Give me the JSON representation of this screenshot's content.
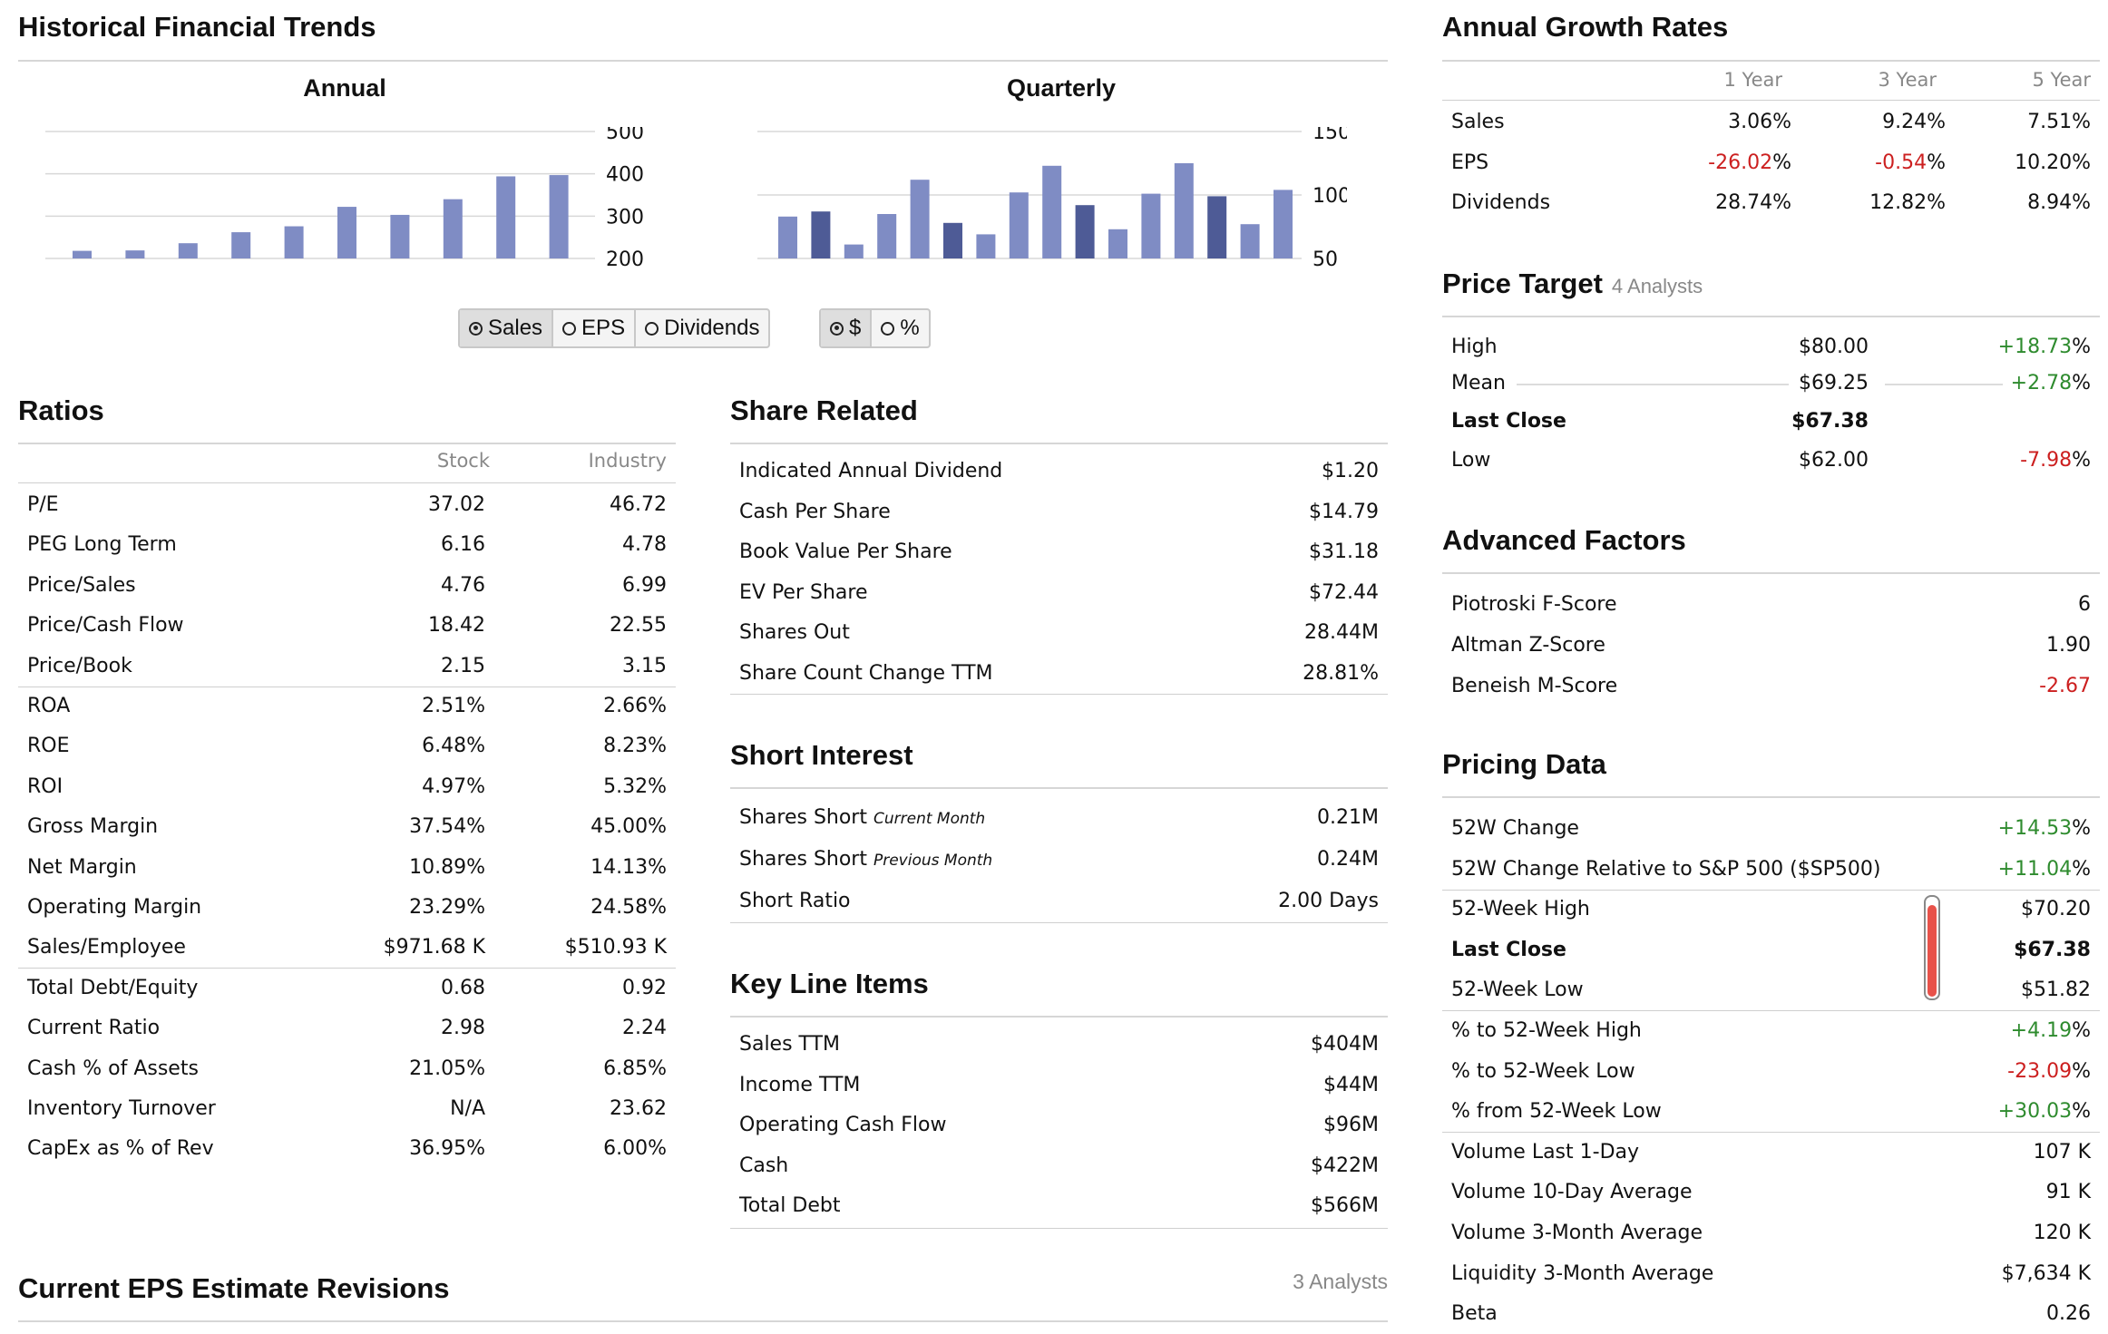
{
  "trends": {
    "title": "Historical Financial Trends",
    "annual_title": "Annual",
    "quarterly_title": "Quarterly",
    "metric_buttons": [
      "Sales",
      "EPS",
      "Dividends"
    ],
    "unit_buttons": [
      "$",
      "%"
    ],
    "selected_metric": "Sales",
    "selected_unit": "$"
  },
  "chart_data": [
    {
      "type": "bar",
      "title": "Annual",
      "values": [
        218,
        219,
        236,
        262,
        276,
        322,
        303,
        340,
        394,
        397
      ],
      "ylim": [
        200,
        500
      ],
      "yticks": [
        "500",
        "400",
        "300",
        "200"
      ],
      "ytick_values": [
        500,
        400,
        300,
        200
      ],
      "grid": true,
      "color": "#7f8cc4"
    },
    {
      "type": "bar",
      "title": "Quarterly",
      "values": [
        83,
        87,
        61,
        85,
        112,
        78,
        69,
        102,
        123,
        92,
        73,
        101,
        125,
        99,
        77,
        104
      ],
      "dark": [
        false,
        true,
        false,
        false,
        false,
        true,
        false,
        false,
        false,
        true,
        false,
        false,
        false,
        true,
        false,
        false
      ],
      "ylim": [
        50,
        150
      ],
      "yticks": [
        "150",
        "100",
        "50"
      ],
      "ytick_values": [
        150,
        100,
        50
      ],
      "grid": true,
      "color": "#7f8cc4",
      "dark_color": "#4e5b96"
    }
  ],
  "ratios": {
    "title": "Ratios",
    "col1": "Stock",
    "col2": "Industry",
    "rows": [
      [
        "P/E",
        "37.02",
        "46.72"
      ],
      [
        "PEG Long Term",
        "6.16",
        "4.78"
      ],
      [
        "Price/Sales",
        "4.76",
        "6.99"
      ],
      [
        "Price/Cash Flow",
        "18.42",
        "22.55"
      ],
      [
        "Price/Book",
        "2.15",
        "3.15"
      ],
      [
        "ROA",
        "2.51%",
        "2.66%"
      ],
      [
        "ROE",
        "6.48%",
        "8.23%"
      ],
      [
        "ROI",
        "4.97%",
        "5.32%"
      ],
      [
        "Gross Margin",
        "37.54%",
        "45.00%"
      ],
      [
        "Net Margin",
        "10.89%",
        "14.13%"
      ],
      [
        "Operating Margin",
        "23.29%",
        "24.58%"
      ],
      [
        "Sales/Employee",
        "$971.68 K",
        "$510.93 K"
      ],
      [
        "Total Debt/Equity",
        "0.68",
        "0.92"
      ],
      [
        "Current Ratio",
        "2.98",
        "2.24"
      ],
      [
        "Cash % of Assets",
        "21.05%",
        "6.85%"
      ],
      [
        "Inventory Turnover",
        "N/A",
        "23.62"
      ],
      [
        "CapEx as % of Rev",
        "36.95%",
        "6.00%"
      ]
    ]
  },
  "share_related": {
    "title": "Share Related",
    "rows": [
      [
        "Indicated Annual Dividend",
        "$1.20"
      ],
      [
        "Cash Per Share",
        "$14.79"
      ],
      [
        "Book Value Per Share",
        "$31.18"
      ],
      [
        "EV Per Share",
        "$72.44"
      ],
      [
        "Shares Out",
        "28.44M"
      ],
      [
        "Share Count Change TTM",
        "28.81%"
      ]
    ]
  },
  "short_interest": {
    "title": "Short Interest",
    "rows": [
      {
        "label": "Shares Short",
        "note": "Current Month",
        "value": "0.21M"
      },
      {
        "label": "Shares Short",
        "note": "Previous Month",
        "value": "0.24M"
      },
      {
        "label": "Short Ratio",
        "note": "",
        "value": "2.00 Days"
      }
    ]
  },
  "key_line_items": {
    "title": "Key Line Items",
    "rows": [
      [
        "Sales TTM",
        "$404M"
      ],
      [
        "Income TTM",
        "$44M"
      ],
      [
        "Operating Cash Flow",
        "$96M"
      ],
      [
        "Cash",
        "$422M"
      ],
      [
        "Total Debt",
        "$566M"
      ]
    ]
  },
  "eps_revisions": {
    "title": "Current EPS Estimate Revisions",
    "analysts": "3 Analysts"
  },
  "growth": {
    "title": "Annual Growth Rates",
    "cols": [
      "1 Year",
      "3 Year",
      "5 Year"
    ],
    "rows": [
      {
        "label": "Sales",
        "v": [
          "3.06%",
          "9.24%",
          "7.51%"
        ],
        "neg": [
          false,
          false,
          false
        ]
      },
      {
        "label": "EPS",
        "v": [
          "-26.02",
          "-0.54",
          "10.20%"
        ],
        "neg": [
          true,
          true,
          false
        ]
      },
      {
        "label": "Dividends",
        "v": [
          "28.74%",
          "12.82%",
          "8.94%"
        ],
        "neg": [
          false,
          false,
          false
        ]
      }
    ]
  },
  "price_target": {
    "title": "Price Target",
    "analysts": "4 Analysts",
    "rows": [
      {
        "label": "High",
        "price": "$80.00",
        "chg": "+18.73",
        "bold": false,
        "leader": false
      },
      {
        "label": "Mean",
        "price": "$69.25",
        "chg": "+2.78",
        "bold": false,
        "leader": true
      },
      {
        "label": "Last Close",
        "price": "$67.38",
        "chg": "",
        "bold": true,
        "leader": false
      },
      {
        "label": "Low",
        "price": "$62.00",
        "chg": "-7.98",
        "bold": false,
        "leader": false
      }
    ]
  },
  "advanced": {
    "title": "Advanced Factors",
    "rows": [
      {
        "label": "Piotroski F-Score",
        "value": "6",
        "neg": false
      },
      {
        "label": "Altman Z-Score",
        "value": "1.90",
        "neg": false
      },
      {
        "label": "Beneish M-Score",
        "value": "-2.67",
        "neg": true
      }
    ]
  },
  "pricing": {
    "title": "Pricing Data",
    "range_position": 0.9,
    "rows": [
      {
        "label": "52W Change",
        "value": "+14.53",
        "cls": "pos",
        "pct": true,
        "bold": false
      },
      {
        "label": "52W Change Relative to S&P 500 ($SP500)",
        "value": "+11.04",
        "cls": "pos",
        "pct": true,
        "bold": false
      },
      {
        "label": "52-Week High",
        "value": "$70.20",
        "cls": "",
        "pct": false,
        "bold": false
      },
      {
        "label": "Last Close",
        "value": "$67.38",
        "cls": "",
        "pct": false,
        "bold": true
      },
      {
        "label": "52-Week Low",
        "value": "$51.82",
        "cls": "",
        "pct": false,
        "bold": false
      },
      {
        "label": "% to 52-Week High",
        "value": "+4.19",
        "cls": "pos",
        "pct": true,
        "bold": false
      },
      {
        "label": "% to 52-Week Low",
        "value": "-23.09",
        "cls": "neg",
        "pct": true,
        "bold": false
      },
      {
        "label": "% from 52-Week Low",
        "value": "+30.03",
        "cls": "pos",
        "pct": true,
        "bold": false
      },
      {
        "label": "Volume Last 1-Day",
        "value": "107 K",
        "cls": "",
        "pct": false,
        "bold": false
      },
      {
        "label": "Volume 10-Day Average",
        "value": "91 K",
        "cls": "",
        "pct": false,
        "bold": false
      },
      {
        "label": "Volume 3-Month Average",
        "value": "120 K",
        "cls": "",
        "pct": false,
        "bold": false
      },
      {
        "label": "Liquidity 3-Month Average",
        "value": "$7,634 K",
        "cls": "",
        "pct": false,
        "bold": false
      },
      {
        "label": "Beta",
        "value": "0.26",
        "cls": "",
        "pct": false,
        "bold": false
      }
    ]
  },
  "colors": {
    "negative": "#cc1f1f",
    "positive": "#2e8b2e",
    "bar": "#7f8cc4",
    "bar_dark": "#4e5b96",
    "gauge": "#e8524a"
  }
}
